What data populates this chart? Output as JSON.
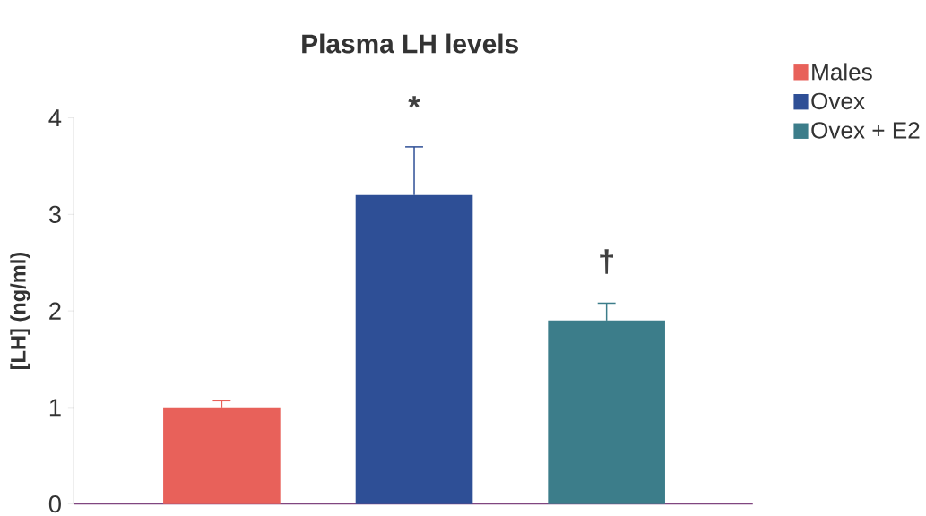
{
  "chart_data": {
    "type": "bar",
    "title": "Plasma LH levels",
    "ylabel": "[LH] (ng/ml)",
    "categories": [
      null,
      null,
      null
    ],
    "series": [
      {
        "name": "Males",
        "color": "#e8615a",
        "values": [
          1.0,
          null,
          null
        ],
        "errors": [
          0.07,
          null,
          null
        ]
      },
      {
        "name": "Ovex",
        "color": "#2e4f96",
        "values": [
          null,
          3.2,
          null
        ],
        "errors": [
          null,
          0.5,
          null
        ]
      },
      {
        "name": "Ovex + E2",
        "color": "#3c7d8a",
        "values": [
          null,
          null,
          1.9
        ],
        "errors": [
          null,
          null,
          0.18
        ]
      }
    ],
    "ylim": [
      0,
      4
    ],
    "yticks": [
      0,
      1,
      2,
      3,
      4
    ],
    "legend": "top right",
    "annotations": [
      "*",
      "†"
    ]
  }
}
